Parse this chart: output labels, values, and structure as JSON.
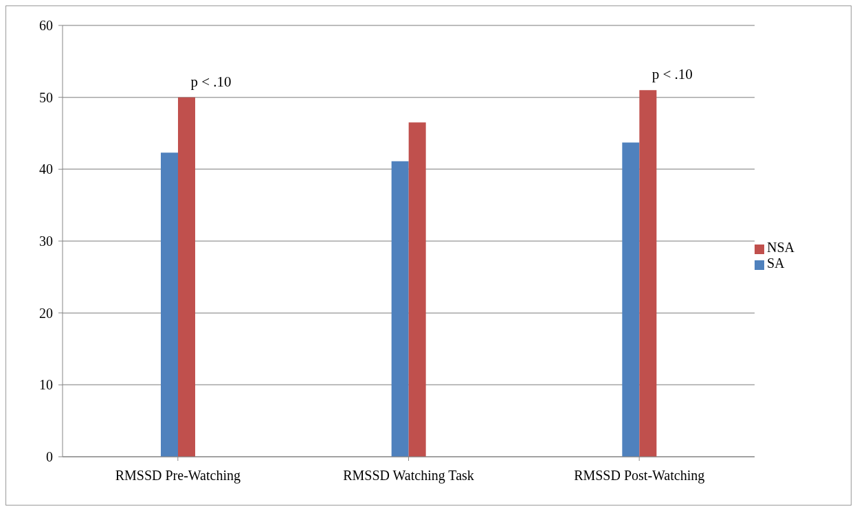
{
  "chart_data": {
    "type": "bar",
    "categories": [
      "RMSSD Pre-Watching",
      "RMSSD Watching Task",
      "RMSSD Post-Watching"
    ],
    "series": [
      {
        "name": "SA",
        "color": "#4f81bd",
        "values": [
          42.3,
          41.1,
          43.7
        ]
      },
      {
        "name": "NSA",
        "color": "#c0504d",
        "values": [
          50.0,
          46.5,
          51.0
        ]
      }
    ],
    "ylim": [
      0,
      60
    ],
    "yticks": [
      0,
      10,
      20,
      30,
      40,
      50,
      60
    ],
    "grid": "y",
    "legend": "right",
    "annotations": [
      {
        "text": "p < .10",
        "x": "RMSSD Pre-Watching",
        "y": 50.0
      },
      {
        "text": "p < .10",
        "x": "RMSSD Post-Watching",
        "y": 51.0
      }
    ]
  }
}
